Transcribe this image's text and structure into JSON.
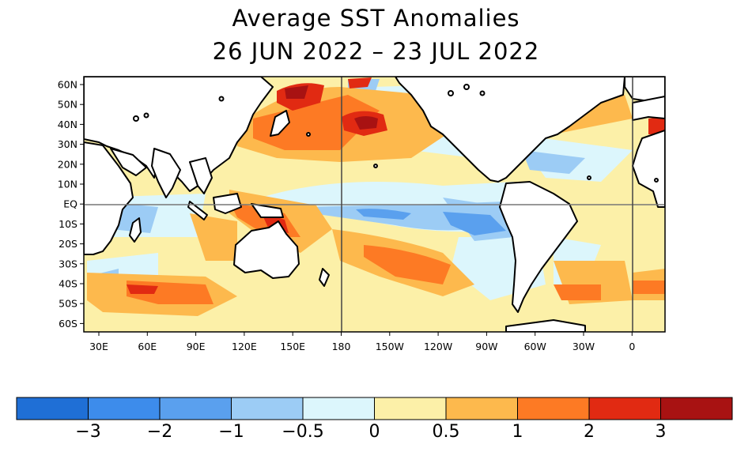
{
  "title": "Average SST Anomalies",
  "subtitle": "26 JUN 2022 – 23 JUL 2022",
  "map": {
    "lat_labels": [
      "60N",
      "50N",
      "40N",
      "30N",
      "20N",
      "10N",
      "EQ",
      "10S",
      "20S",
      "30S",
      "40S",
      "50S",
      "60S"
    ],
    "lon_labels": [
      "30E",
      "60E",
      "90E",
      "120E",
      "150E",
      "180",
      "150W",
      "120W",
      "90W",
      "60W",
      "30W",
      "0"
    ]
  },
  "colorbar": {
    "colors": [
      "#1f6fd6",
      "#3d8ceb",
      "#5aa0ee",
      "#9cccf5",
      "#dcf6fc",
      "#fcf0a8",
      "#fdb94d",
      "#fd7a24",
      "#e12a12",
      "#a81212"
    ],
    "labels": [
      "−3",
      "−2",
      "−1",
      "−0.5",
      "0",
      "0.5",
      "1",
      "2",
      "3"
    ]
  }
}
